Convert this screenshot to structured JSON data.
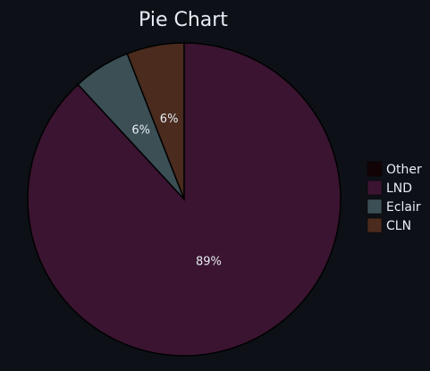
{
  "chart_data": {
    "type": "pie",
    "title": "Pie Chart",
    "slices": [
      {
        "label": "CLN",
        "value": 6,
        "display": "6%",
        "color": "#4a2b1e"
      },
      {
        "label": "Eclair",
        "value": 6,
        "display": "6%",
        "color": "#3b4f55"
      },
      {
        "label": "LND",
        "value": 89,
        "display": "89%",
        "color": "#3a1430"
      },
      {
        "label": "Other",
        "value": 0,
        "display": "",
        "color": "#120307"
      }
    ],
    "legend": {
      "placement": "right",
      "entries": [
        {
          "label": "Other",
          "color": "#120307"
        },
        {
          "label": "LND",
          "color": "#3a1430"
        },
        {
          "label": "Eclair",
          "color": "#3b4f55"
        },
        {
          "label": "CLN",
          "color": "#4a2b1e"
        }
      ]
    },
    "background": "#0d1117",
    "text_color": "#e6edf3",
    "stroke_color": "#000000"
  }
}
